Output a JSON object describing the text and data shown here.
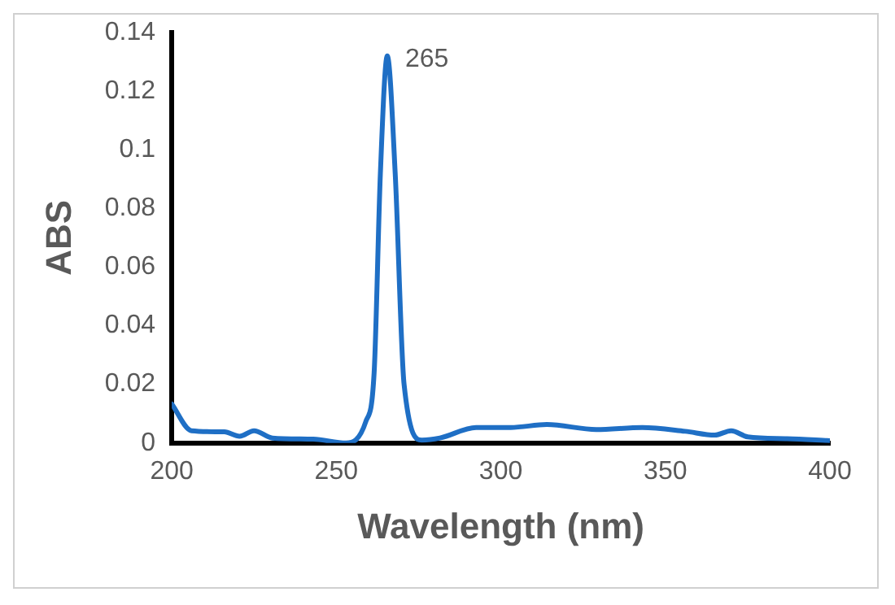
{
  "chart_data": {
    "type": "line",
    "xlabel": "Wavelength (nm)",
    "ylabel": "ABS",
    "x": [
      200,
      206,
      216,
      220.6,
      225,
      230.6,
      243,
      253,
      259,
      261.5,
      263.4,
      265.5,
      267.9,
      270.6,
      276,
      281.5,
      292.5,
      303,
      314,
      329,
      343,
      356,
      365,
      370,
      375,
      387,
      400
    ],
    "series": [
      {
        "color": "#1f6fc5",
        "values": [
          0.0133,
          0.0042,
          0.0038,
          0.0023,
          0.0042,
          0.0017,
          0.0013,
          0,
          0.0074,
          0.024,
          0.092,
          0.132,
          0.092,
          0.02,
          0.001,
          0.0017,
          0.0053,
          0.0053,
          0.0063,
          0.0046,
          0.0053,
          0.004,
          0.0027,
          0.0042,
          0.0021,
          0.0015,
          0.0008
        ]
      }
    ],
    "xlim": [
      200,
      400
    ],
    "xticks": [
      200,
      250,
      300,
      350,
      400
    ],
    "ylim": [
      0,
      0.14
    ],
    "yticks": [
      0,
      0.02,
      0.04,
      0.06,
      0.08,
      0.1,
      0.12,
      0.14
    ],
    "annotations": [
      {
        "text": "265",
        "x": 265,
        "y": 0.132
      }
    ],
    "grid": false,
    "legend": false,
    "marker": "none",
    "line_style": "solid"
  }
}
